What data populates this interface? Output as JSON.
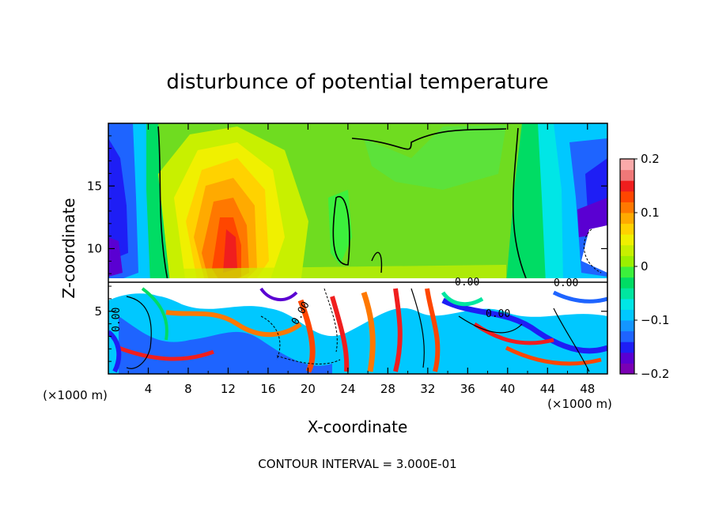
{
  "chart_data": {
    "type": "heatmap",
    "title": "disturbunce of potential temperature",
    "xlabel": "X-coordinate",
    "ylabel": "Z-coordinate",
    "x_unit": "(×1000 m)",
    "x_unit_right": "(×1000 m)",
    "xlim": [
      0,
      50
    ],
    "ylim": [
      0,
      20
    ],
    "x_ticks": [
      4,
      8,
      12,
      16,
      20,
      24,
      28,
      32,
      36,
      40,
      44,
      48
    ],
    "y_ticks": [
      5,
      10,
      15
    ],
    "colorbar": {
      "range": [
        -0.2,
        0.2
      ],
      "tick_values": [
        0.2,
        0.1,
        0,
        -0.1,
        -0.2
      ],
      "tick_labels": [
        "0.2",
        "0.1",
        "0",
        "−0.1",
        "−0.2"
      ],
      "colors": [
        "#7a00b4",
        "#5a00d2",
        "#1e1ef5",
        "#1e64ff",
        "#1496ff",
        "#00c8ff",
        "#00e6e6",
        "#00e6a0",
        "#00dc64",
        "#3cf03c",
        "#9bf000",
        "#c8f000",
        "#f0f000",
        "#ffd200",
        "#ffaa00",
        "#ff7800",
        "#ff4600",
        "#f01e1e",
        "#f07878",
        "#faaaaa"
      ]
    },
    "contour_labels": [
      "0.00",
      "0.00",
      "0.00",
      "0.00",
      "0.00"
    ],
    "footer": "CONTOUR INTERVAL = 3.000E-01",
    "grid": false,
    "legend_position": "right (colorbar)"
  }
}
